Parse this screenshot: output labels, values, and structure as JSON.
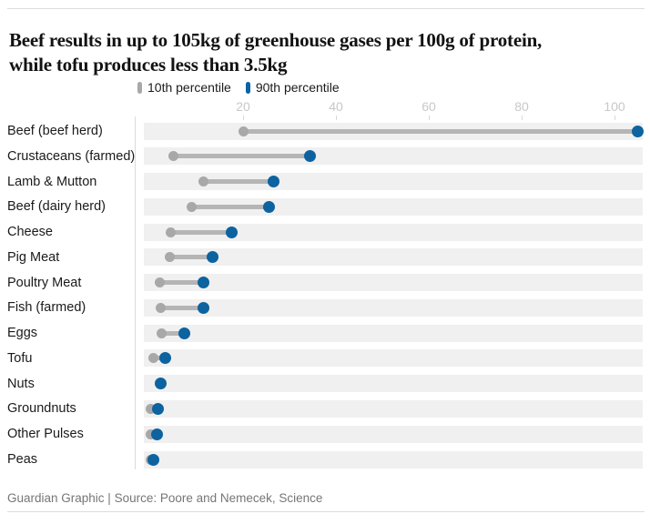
{
  "header": {
    "title_line1": "Beef results in up to 105kg of greenhouse gases per 100g of protein,",
    "title_line2": "while tofu produces less than 3.5kg"
  },
  "legend": {
    "items": [
      {
        "label": "10th percentile",
        "color": "#a8a8a8"
      },
      {
        "label": "90th percentile",
        "color": "#0c639f"
      }
    ]
  },
  "chart_data": {
    "type": "scatter",
    "subtype": "dumbbell-range",
    "title": "Beef results in up to 105kg of greenhouse gases per 100g of protein, while tofu produces less than 3.5kg",
    "xlabel": "",
    "ylabel": "",
    "xlim": [
      0,
      106
    ],
    "x_ticks": [
      20,
      40,
      60,
      80,
      100
    ],
    "grid": false,
    "legend_position": "top",
    "categories": [
      "Beef (beef herd)",
      "Crustaceans (farmed)",
      "Lamb & Mutton",
      "Beef (dairy herd)",
      "Cheese",
      "Pig Meat",
      "Poultry Meat",
      "Fish (farmed)",
      "Eggs",
      "Tofu",
      "Nuts",
      "Groundnuts",
      "Other Pulses",
      "Peas"
    ],
    "series": [
      {
        "name": "10th percentile",
        "values": [
          20,
          5,
          11.5,
          9,
          4.5,
          4.3,
          2,
          2.2,
          2.5,
          0.6,
          null,
          0.1,
          0,
          0
        ]
      },
      {
        "name": "90th percentile",
        "values": [
          105,
          34.5,
          26.5,
          25.5,
          17.5,
          13.5,
          11.5,
          11.5,
          7.4,
          3.2,
          2.2,
          1.7,
          1.5,
          0.6
        ]
      }
    ]
  },
  "footer": {
    "credit": "Guardian Graphic | Source: Poore and Nemecek, Science"
  },
  "colors": {
    "p10": "#a8a8a8",
    "p90": "#0c639f",
    "connector": "#b5b5b5",
    "row_bg": "#f0f0f0",
    "tick_label": "#c8c8c8",
    "tick_mark": "#d8d8d8",
    "rule": "#dcdcdc",
    "title": "#121212",
    "footer": "#767676"
  }
}
